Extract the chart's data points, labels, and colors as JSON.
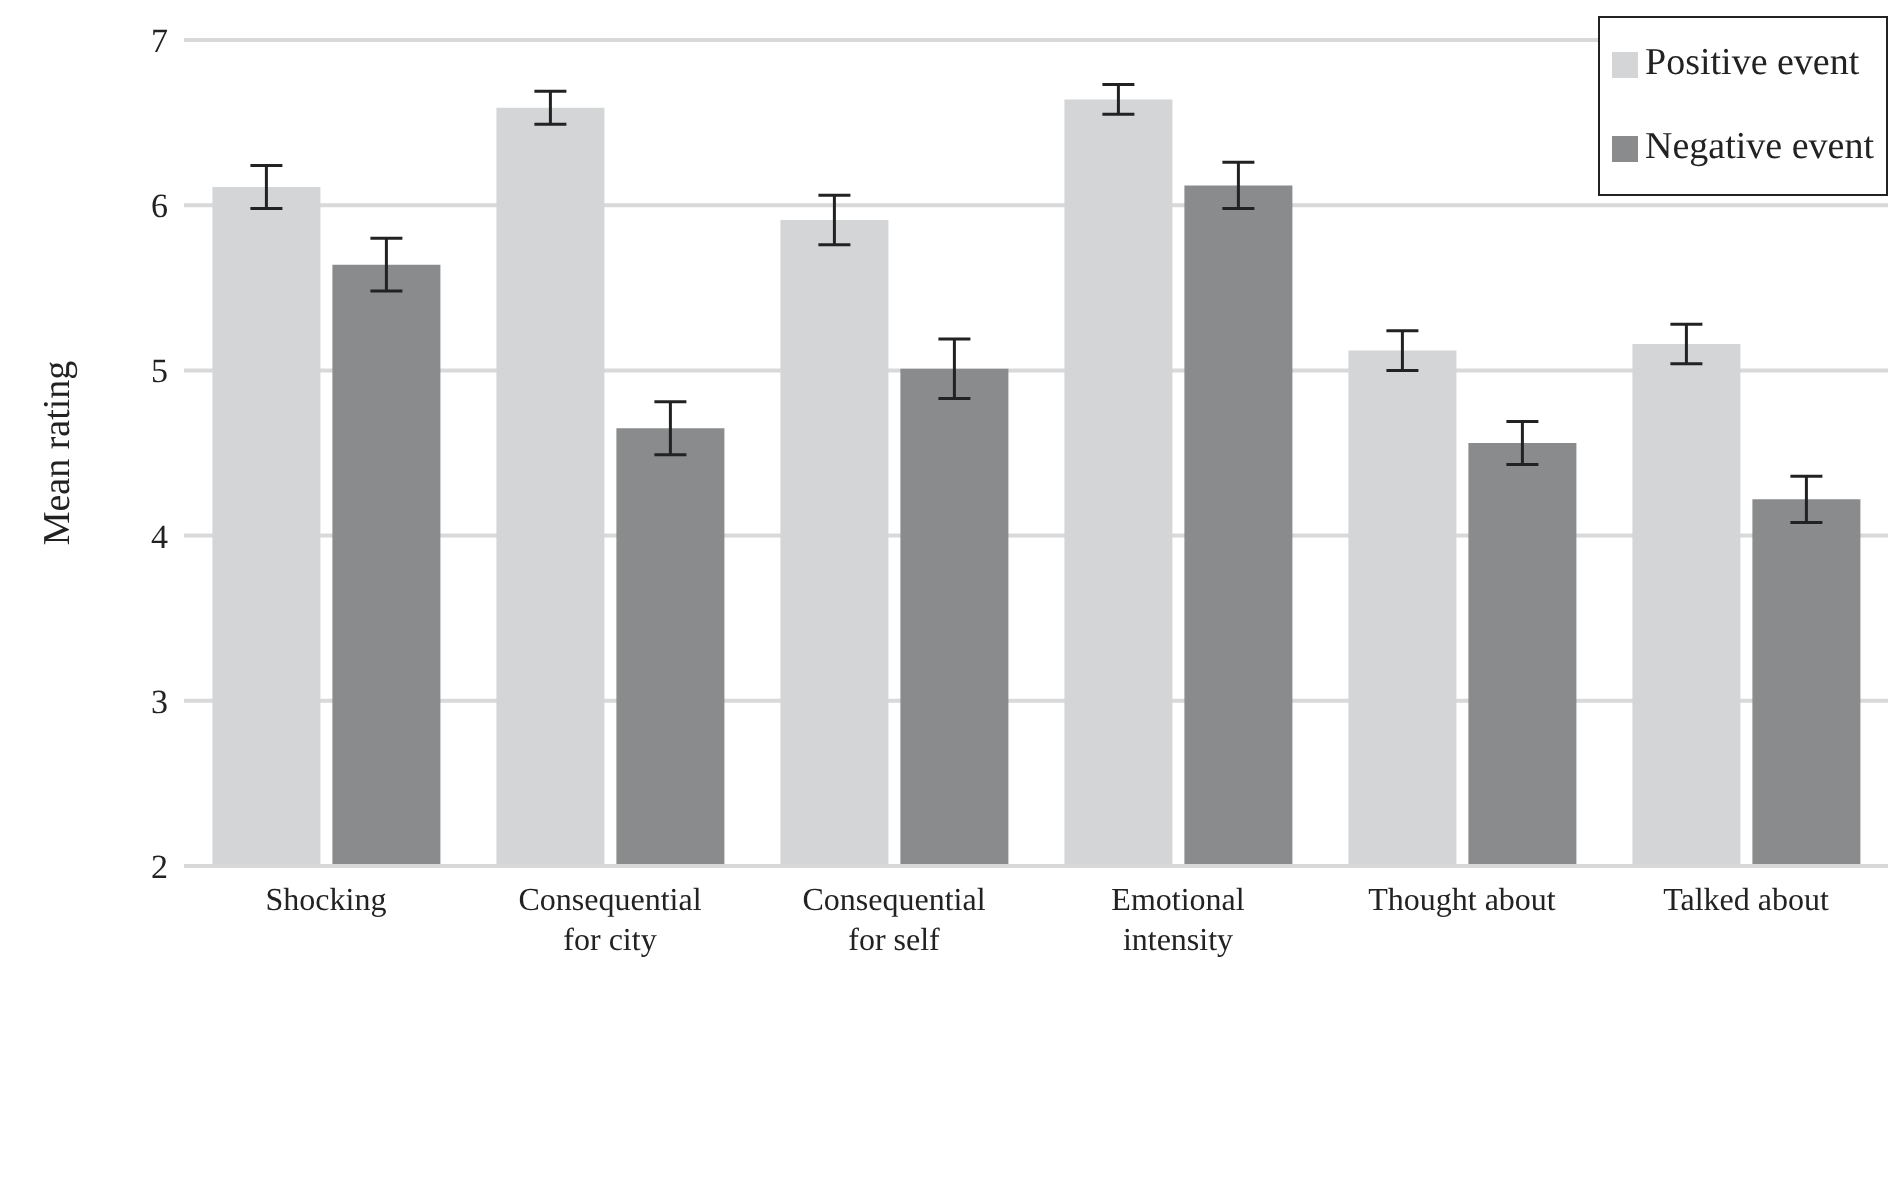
{
  "chart_data": {
    "type": "bar",
    "ylabel": "Mean rating",
    "categories": [
      "Shocking",
      "Consequential\nfor city",
      "Consequential\nfor self",
      "Emotional\nintensity",
      "Thought about",
      "Talked about"
    ],
    "series": [
      {
        "name": "Positive event",
        "color": "#d4d5d7",
        "values": [
          6.11,
          6.59,
          5.91,
          6.64,
          5.12,
          5.16
        ],
        "errors": [
          0.13,
          0.1,
          0.15,
          0.09,
          0.12,
          0.12
        ]
      },
      {
        "name": "Negative event",
        "color": "#8a8b8d",
        "values": [
          5.64,
          4.65,
          5.01,
          6.12,
          4.56,
          4.22
        ],
        "errors": [
          0.16,
          0.16,
          0.18,
          0.14,
          0.13,
          0.14
        ]
      }
    ],
    "ylim": [
      2,
      7
    ],
    "yticks": [
      2,
      3,
      4,
      5,
      6,
      7
    ],
    "grid": "y",
    "legend": "top right"
  }
}
